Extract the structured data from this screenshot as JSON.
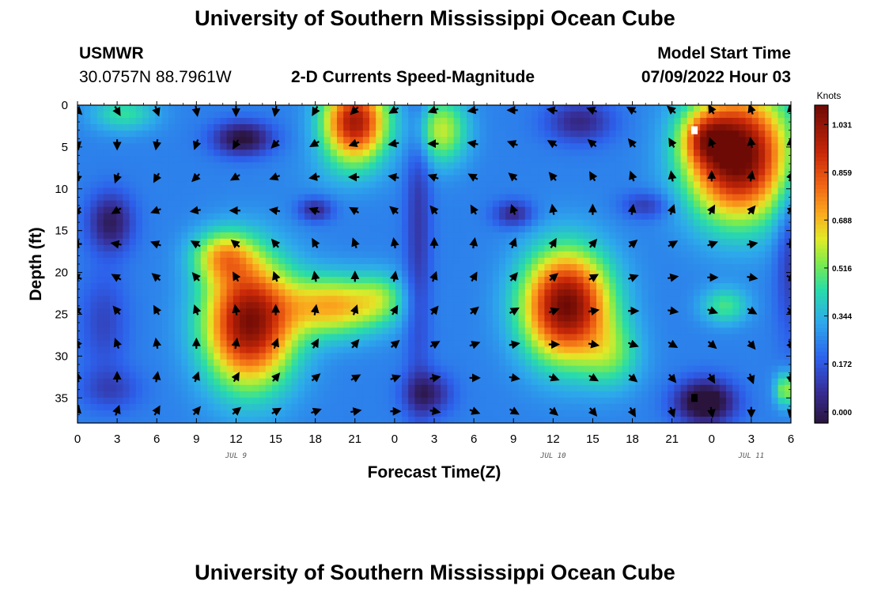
{
  "page": {
    "title": "University of Southern Mississippi Ocean Cube",
    "title_bottom": "University of Southern Mississippi Ocean Cube",
    "station": "USMWR",
    "location": "30.0757N  88.7961W",
    "plot_title": "2-D Currents Speed-Magnitude",
    "model_label": "Model Start Time",
    "model_time": "07/09/2022 Hour 03"
  },
  "chart_data": {
    "type": "heatmap",
    "title": "2-D Currents Speed-Magnitude",
    "xlabel": "Forecast Time(Z)",
    "ylabel": "Depth (ft)",
    "x_unit": "hours since 2022-07-09 00Z",
    "xlim": [
      0,
      54
    ],
    "ylim": [
      0,
      38
    ],
    "x_ticks": [
      0,
      3,
      6,
      9,
      12,
      15,
      18,
      21,
      24,
      27,
      30,
      33,
      36,
      39,
      42,
      45,
      48,
      51,
      54
    ],
    "x_tick_labels": [
      "0",
      "3",
      "6",
      "9",
      "12",
      "15",
      "18",
      "21",
      "0",
      "3",
      "6",
      "9",
      "12",
      "15",
      "18",
      "21",
      "0",
      "3",
      "6"
    ],
    "y_ticks": [
      0,
      5,
      10,
      15,
      20,
      25,
      30,
      35
    ],
    "y_tick_labels": [
      "0",
      "5",
      "10",
      "15",
      "20",
      "25",
      "30",
      "35"
    ],
    "date_labels": [
      {
        "text": "JUL 9",
        "x": 12
      },
      {
        "text": "JUL 10",
        "x": 36
      },
      {
        "text": "JUL 11",
        "x": 51
      }
    ],
    "colorbar": {
      "title": "Knots",
      "min": -0.04,
      "max": 1.1,
      "labels": [
        "1.031",
        "0.859",
        "0.688",
        "0.516",
        "0.344",
        "0.172",
        "0.000"
      ],
      "label_values": [
        1.031,
        0.859,
        0.688,
        0.516,
        0.344,
        0.172,
        0.0
      ]
    },
    "speed_features": [
      {
        "x": 21,
        "y": 2,
        "sx": 2.4,
        "sy": 4.6,
        "v": 0.75
      },
      {
        "x": 20,
        "y": 8,
        "sx": 3.5,
        "sy": 3.0,
        "v": 0.05
      },
      {
        "x": 13,
        "y": 26,
        "sx": 3.4,
        "sy": 7.5,
        "v": 0.82
      },
      {
        "x": 11,
        "y": 18,
        "sx": 2.3,
        "sy": 3.0,
        "v": 0.35
      },
      {
        "x": 19.5,
        "y": 24,
        "sx": 3.6,
        "sy": 3.6,
        "v": 0.45
      },
      {
        "x": 23,
        "y": 23,
        "sx": 1.8,
        "sy": 3.0,
        "v": 0.18
      },
      {
        "x": 37,
        "y": 24,
        "sx": 3.3,
        "sy": 6.5,
        "v": 0.85
      },
      {
        "x": 40.5,
        "y": 30,
        "sx": 2.2,
        "sy": 4.0,
        "v": 0.2
      },
      {
        "x": 50,
        "y": 6,
        "sx": 3.8,
        "sy": 7.5,
        "v": 0.9
      },
      {
        "x": 47.5,
        "y": 4,
        "sx": 1.8,
        "sy": 3.0,
        "v": 0.3
      },
      {
        "x": 49,
        "y": 24,
        "sx": 1.8,
        "sy": 2.2,
        "v": 0.22
      },
      {
        "x": 27.5,
        "y": 3,
        "sx": 2.0,
        "sy": 4.0,
        "v": 0.35
      },
      {
        "x": 3.5,
        "y": 1,
        "sx": 2.5,
        "sy": 2.2,
        "v": 0.2
      },
      {
        "x": 53.6,
        "y": 34,
        "sx": 0.8,
        "sy": 2.0,
        "v": 0.32
      },
      {
        "x": 12.5,
        "y": 4,
        "sx": 2.2,
        "sy": 2.0,
        "v": -0.3
      },
      {
        "x": 2.5,
        "y": 14,
        "sx": 1.7,
        "sy": 3.5,
        "v": -0.25
      },
      {
        "x": 2,
        "y": 26,
        "sx": 1.8,
        "sy": 6.0,
        "v": -0.12
      },
      {
        "x": 2.5,
        "y": 34,
        "sx": 2.3,
        "sy": 2.5,
        "v": -0.12
      },
      {
        "x": 18,
        "y": 12.5,
        "sx": 1.3,
        "sy": 1.4,
        "v": -0.2
      },
      {
        "x": 26.5,
        "y": 34.5,
        "sx": 1.8,
        "sy": 2.5,
        "v": -0.22
      },
      {
        "x": 25.8,
        "y": 14,
        "sx": 1.0,
        "sy": 22,
        "v": -0.15
      },
      {
        "x": 33,
        "y": 13,
        "sx": 1.5,
        "sy": 1.6,
        "v": -0.2
      },
      {
        "x": 38,
        "y": 2,
        "sx": 2.5,
        "sy": 2.5,
        "v": -0.2
      },
      {
        "x": 47.5,
        "y": 35.5,
        "sx": 2.2,
        "sy": 2.6,
        "v": -0.38
      },
      {
        "x": 54,
        "y": 18,
        "sx": 1.2,
        "sy": 10,
        "v": -0.15
      },
      {
        "x": 43,
        "y": 12,
        "sx": 1.8,
        "sy": 1.6,
        "v": -0.15
      }
    ],
    "speed_base": 0.25,
    "missing_cells": [
      {
        "x": 46.7,
        "y": 3.0,
        "color": "#ffffff"
      },
      {
        "x": 46.7,
        "y": 35.0,
        "color": "#000000"
      }
    ],
    "vectors": {
      "x": [
        0,
        3,
        6,
        9,
        12,
        15,
        18,
        21,
        24,
        27,
        30,
        33,
        36,
        39,
        42,
        45,
        48,
        51,
        54
      ],
      "depths": [
        0,
        4,
        8,
        12,
        16,
        20,
        24,
        28,
        32,
        36
      ],
      "angles_deg": [
        [
          45,
          60,
          70,
          80,
          90,
          100,
          120,
          135,
          150,
          160,
          170,
          180,
          190,
          200,
          210,
          220,
          240,
          250,
          260
        ],
        [
          80,
          90,
          100,
          110,
          120,
          135,
          150,
          160,
          170,
          180,
          190,
          200,
          210,
          220,
          230,
          240,
          250,
          260,
          270
        ],
        [
          100,
          110,
          120,
          135,
          150,
          160,
          170,
          180,
          190,
          200,
          210,
          220,
          230,
          240,
          250,
          260,
          270,
          280,
          290
        ],
        [
          135,
          150,
          160,
          170,
          180,
          190,
          200,
          210,
          220,
          230,
          240,
          250,
          260,
          270,
          280,
          290,
          300,
          310,
          320
        ],
        [
          180,
          190,
          200,
          210,
          220,
          230,
          240,
          250,
          260,
          270,
          280,
          290,
          300,
          310,
          320,
          330,
          340,
          350,
          0
        ],
        [
          200,
          210,
          220,
          230,
          240,
          250,
          260,
          270,
          280,
          290,
          300,
          310,
          320,
          330,
          340,
          350,
          0,
          10,
          20
        ],
        [
          220,
          230,
          240,
          250,
          260,
          270,
          280,
          290,
          300,
          310,
          320,
          330,
          340,
          350,
          0,
          10,
          20,
          30,
          40
        ],
        [
          240,
          250,
          260,
          270,
          280,
          290,
          300,
          310,
          320,
          330,
          340,
          350,
          0,
          10,
          20,
          30,
          40,
          50,
          60
        ],
        [
          260,
          270,
          280,
          290,
          300,
          310,
          320,
          330,
          340,
          350,
          0,
          10,
          20,
          30,
          40,
          50,
          60,
          70,
          80
        ],
        [
          280,
          290,
          300,
          310,
          320,
          330,
          340,
          350,
          0,
          10,
          20,
          30,
          40,
          50,
          60,
          70,
          80,
          90,
          100
        ]
      ]
    }
  }
}
